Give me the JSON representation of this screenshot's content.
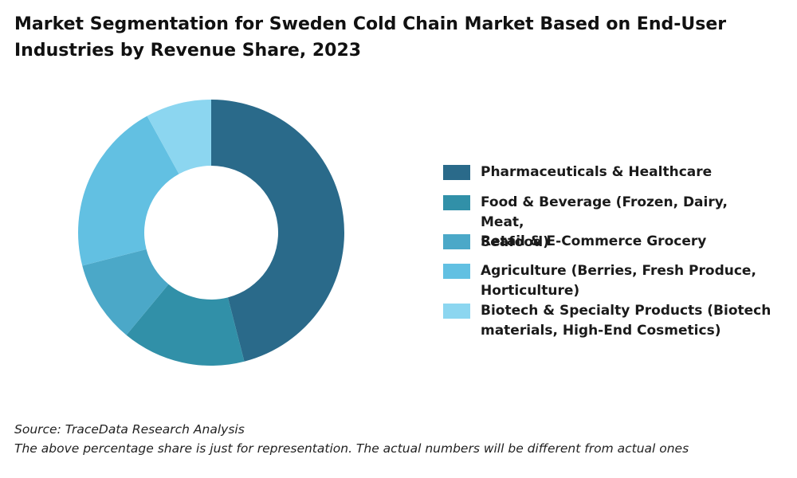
{
  "title_line1": "Market Segmentation for Sweden Cold Chain Market Based on End-User",
  "title_line2": "Industries by Revenue Share, 2023",
  "chart_data": {
    "type": "pie",
    "variant": "donut",
    "title": "Market Segmentation for Sweden Cold Chain Market Based on End-User Industries by Revenue Share, 2023",
    "categories": [
      "Pharmaceuticals & Healthcare",
      "Food & Beverage (Frozen, Dairy, Meat, Seafood)",
      "Retail & E-Commerce Grocery",
      "Agriculture (Berries, Fresh Produce, Horticulture)",
      "Biotech & Specialty Products (Biotech materials, High-End Cosmetics)"
    ],
    "values": [
      46,
      15,
      10,
      21,
      8
    ],
    "colors": [
      "#2a6a8a",
      "#3190a8",
      "#4ba8c8",
      "#62c0e2",
      "#8cd6f0"
    ],
    "legend_position": "right"
  },
  "legend": [
    {
      "line1": "Pharmaceuticals & Healthcare",
      "line2": ""
    },
    {
      "line1": "Food & Beverage (Frozen, Dairy, Meat,",
      "line2": "Seafood)"
    },
    {
      "line1": "Retail & E-Commerce Grocery",
      "line2": ""
    },
    {
      "line1": "Agriculture (Berries, Fresh Produce,",
      "line2": "Horticulture)"
    },
    {
      "line1": "Biotech & Specialty Products (Biotech",
      "line2": "materials, High-End Cosmetics)"
    }
  ],
  "footer": {
    "source": "Source: TraceData Research Analysis",
    "note": "The above percentage share is just for representation. The actual numbers will be different from actual ones"
  }
}
